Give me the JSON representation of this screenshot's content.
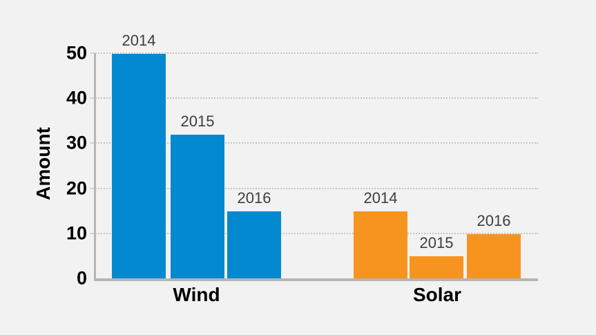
{
  "chart_data": {
    "type": "bar",
    "title": "",
    "xlabel": "",
    "ylabel": "Amount",
    "ylim": [
      0,
      50
    ],
    "yticks": [
      0,
      10,
      20,
      30,
      40,
      50
    ],
    "grid": true,
    "legend_position": "none",
    "bar_label_style": "year-above-each-bar",
    "categories": [
      "Wind",
      "Solar"
    ],
    "category_colors": [
      "#0289d0",
      "#f7941f"
    ],
    "series": [
      {
        "name": "2014",
        "values": [
          50,
          15
        ]
      },
      {
        "name": "2015",
        "values": [
          32,
          5
        ]
      },
      {
        "name": "2016",
        "values": [
          15,
          10
        ]
      }
    ]
  },
  "colors": {
    "background": "#f2f2f2",
    "axis_line": "#b5b5b5",
    "gridline": "#c4c4c4",
    "bar_label_text": "#3d3d3d",
    "axis_text": "#000000"
  }
}
